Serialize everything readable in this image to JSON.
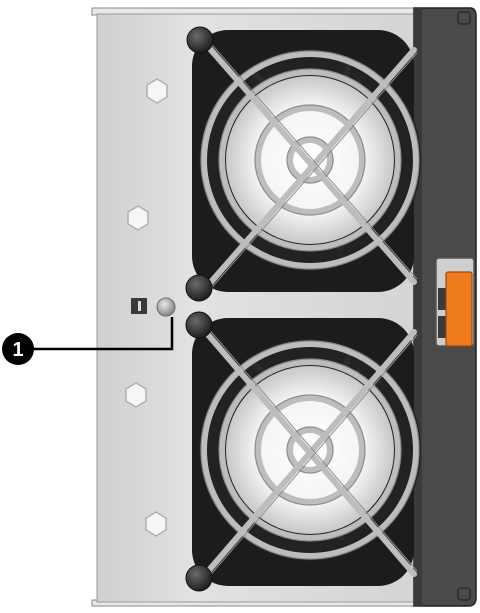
{
  "callouts": [
    {
      "number": "1",
      "target": "fault-led"
    }
  ],
  "colors": {
    "body": "#dcdcdc",
    "bracket": "#4a4a4a",
    "latch": "#f07c1e",
    "fan_shroud": "#1c1c1c",
    "grill": "#b8b8b8",
    "callout_badge": "#000000"
  },
  "icons": {
    "led": "led-indicator-icon",
    "fault": "fault-symbol-icon",
    "screw": "screw-icon",
    "hex": "hex-mount-icon"
  }
}
